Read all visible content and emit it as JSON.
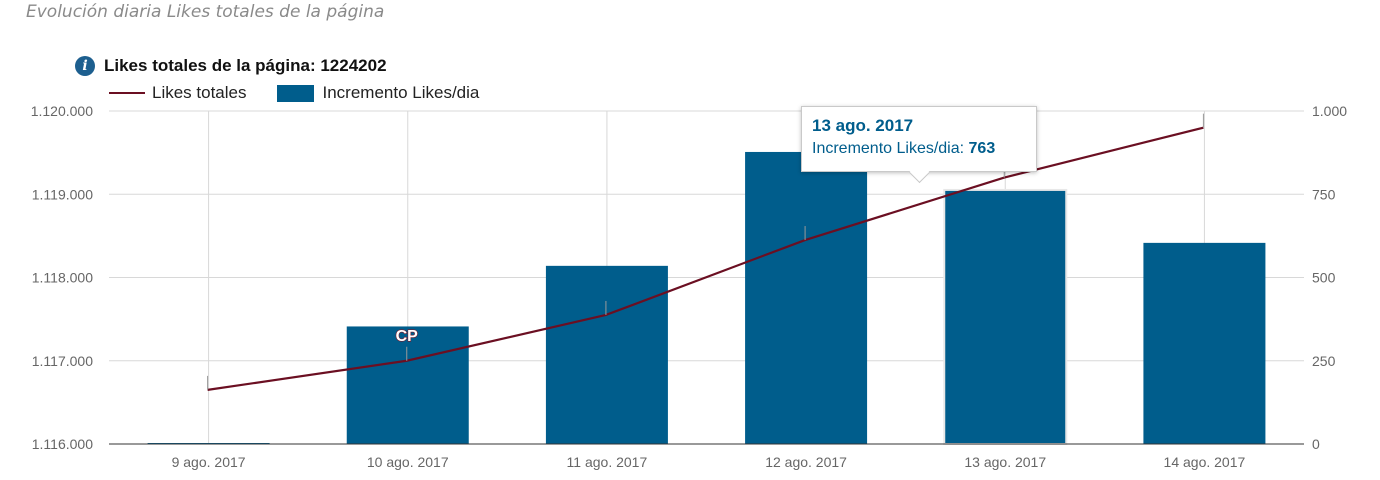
{
  "page": {
    "subtitle": "Evolución diaria Likes totales de la página"
  },
  "chart_data": {
    "type": "bar",
    "title": "Likes totales de la página: 1224202",
    "categories": [
      "9 ago. 2017",
      "10 ago. 2017",
      "11 ago. 2017",
      "12 ago. 2017",
      "13 ago. 2017",
      "14 ago. 2017"
    ],
    "series": [
      {
        "name": "Likes totales",
        "type": "line",
        "axis": "left",
        "values": [
          1116650,
          1117000,
          1117550,
          1118450,
          1119200,
          1119800
        ]
      },
      {
        "name": "Incremento Likes/dia",
        "type": "bar",
        "axis": "right",
        "values": [
          0,
          353,
          535,
          877,
          763,
          604
        ]
      }
    ],
    "y_left": {
      "min": 1116000,
      "max": 1120000,
      "ticks": [
        1116000,
        1117000,
        1118000,
        1119000,
        1120000
      ],
      "tick_labels": [
        "1.116.000",
        "1.117.000",
        "1.118.000",
        "1.119.000",
        "1.120.000"
      ]
    },
    "y_right": {
      "min": 0,
      "max": 1000,
      "ticks": [
        0,
        250,
        500,
        750,
        1000
      ],
      "tick_labels": [
        "0",
        "250",
        "500",
        "750",
        "1.000"
      ]
    },
    "grid": true,
    "legend_position": "top-left",
    "annotations": [
      {
        "category_index": 1,
        "label": "CP"
      }
    ],
    "tooltip": {
      "category_index": 4,
      "title": "13 ago. 2017",
      "series_label": "Incremento Likes/dia:",
      "value": "763"
    },
    "colors": {
      "bar": "#005d8c",
      "line": "#6b0f22",
      "grid": "#d8d8d8",
      "axis_text": "#666666"
    }
  }
}
